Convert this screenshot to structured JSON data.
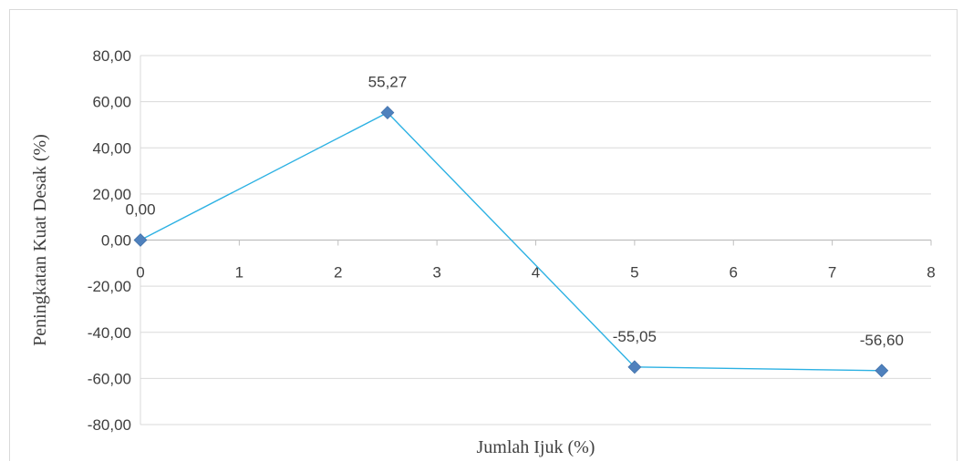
{
  "chart_data": {
    "type": "scatter",
    "xlabel": "Jumlah Ijuk (%)",
    "ylabel": "Peningkatan Kuat Desak (%)",
    "xlim": [
      0,
      8
    ],
    "ylim": [
      -80,
      80
    ],
    "x_ticks": [
      "0",
      "1",
      "2",
      "3",
      "4",
      "5",
      "6",
      "7",
      "8"
    ],
    "y_ticks": [
      "80,00",
      "60,00",
      "40,00",
      "20,00",
      "0,00",
      "-20,00",
      "-40,00",
      "-60,00",
      "-80,00"
    ],
    "grid": true,
    "line_color": "#2cb1e3",
    "marker_color": "#4f81bd",
    "series": [
      {
        "x": [
          0,
          2.5,
          5,
          7.5
        ],
        "y": [
          0.0,
          55.27,
          -55.05,
          -56.6
        ],
        "labels": [
          "0,00",
          "55,27",
          "-55,05",
          "-56,60"
        ]
      }
    ]
  }
}
